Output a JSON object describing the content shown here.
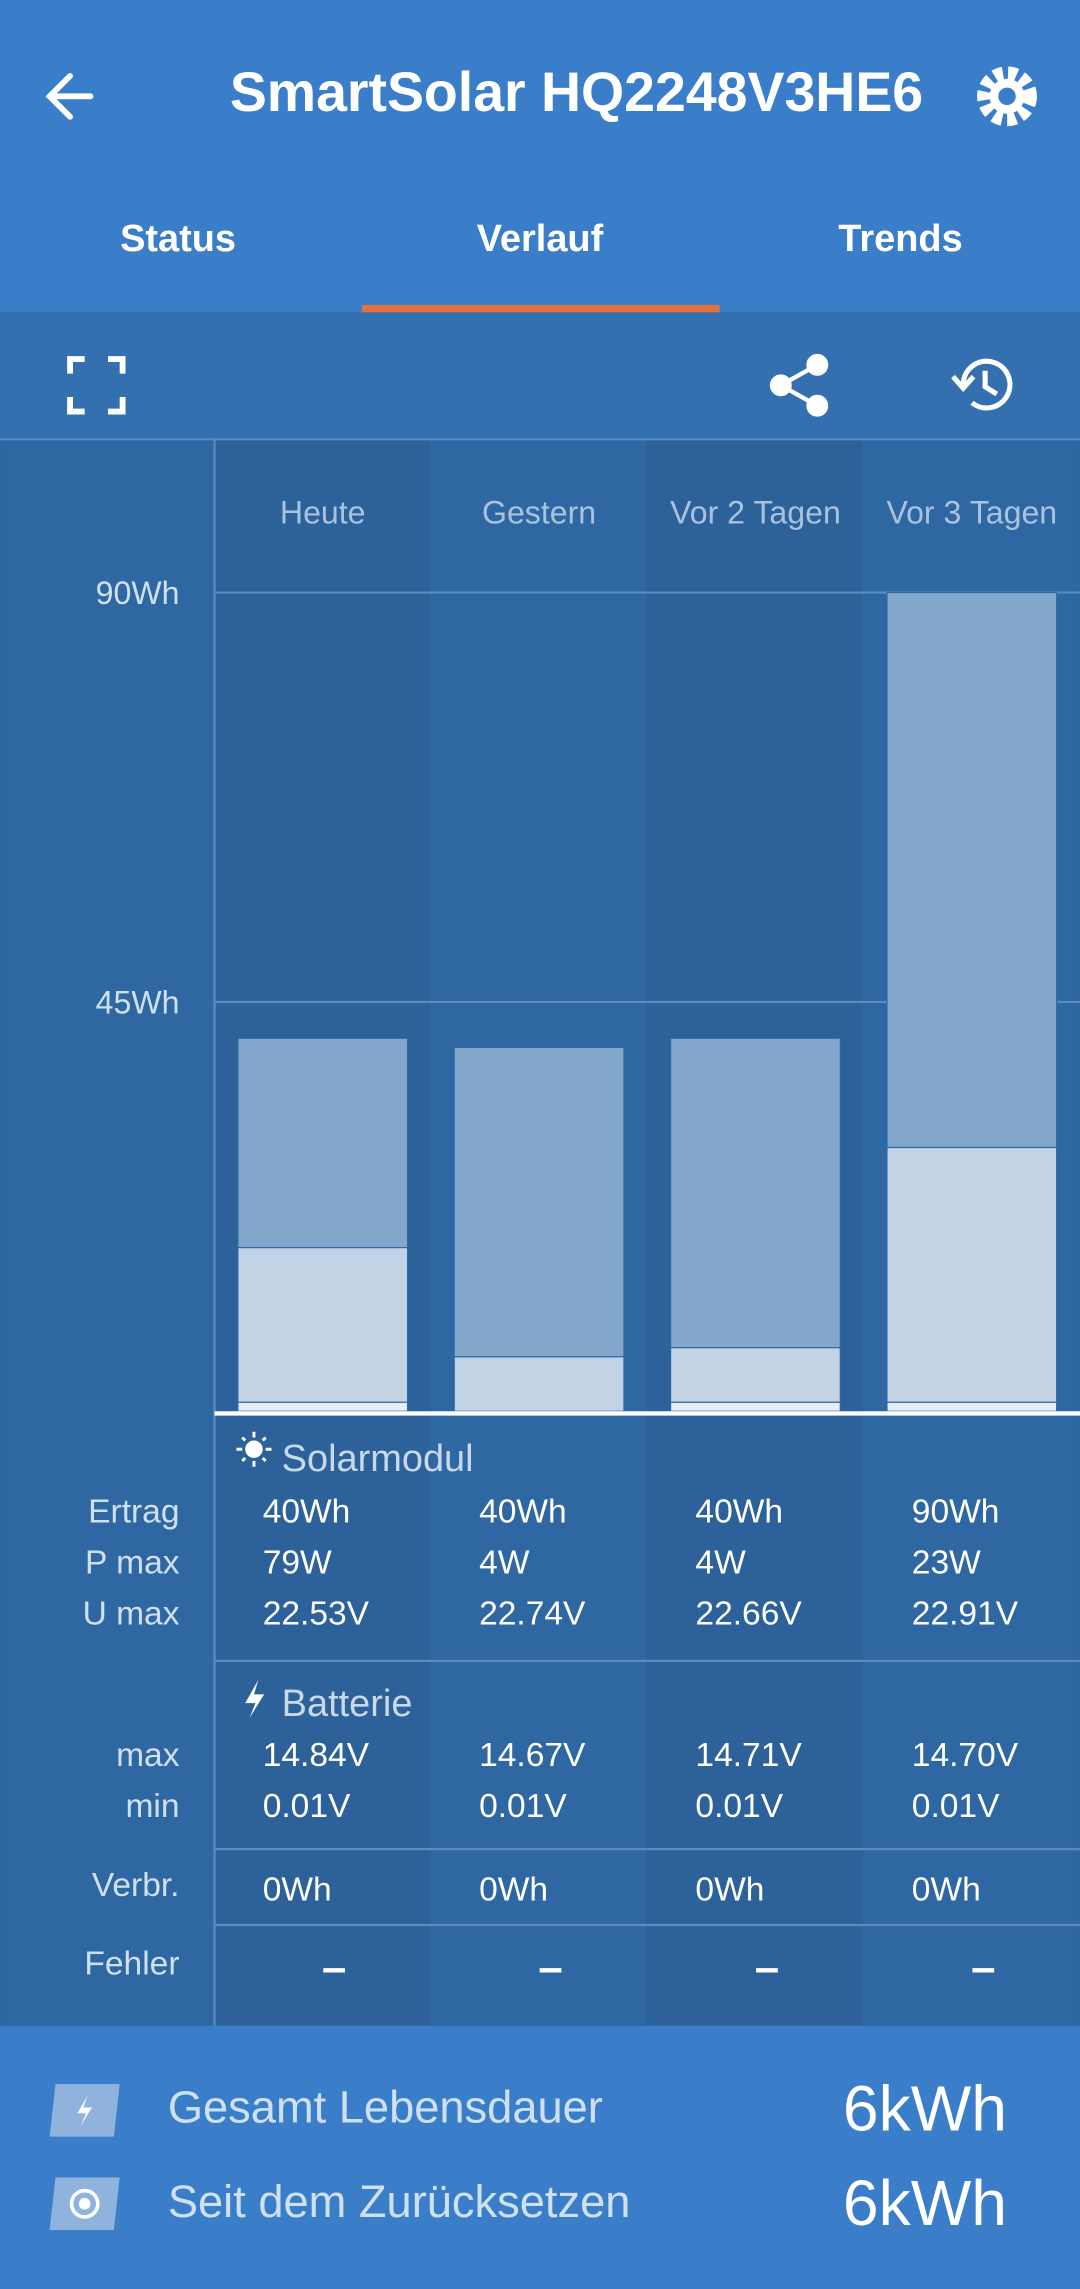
{
  "header": {
    "title": "SmartSolar HQ2248V3HE6",
    "tabs": [
      "Status",
      "Verlauf",
      "Trends"
    ]
  },
  "chart_data": {
    "type": "bar",
    "stacked": true,
    "categories": [
      "Heute",
      "Gestern",
      "Vor 2 Tagen",
      "Vor 3 Tagen"
    ],
    "series": [
      {
        "color": "#e6edf5",
        "values": [
          1,
          0,
          1,
          1
        ]
      },
      {
        "color": "#c3d3e6",
        "values": [
          17,
          6,
          6,
          28
        ]
      },
      {
        "color": "#83a6cb",
        "values": [
          23,
          34,
          34,
          61
        ]
      }
    ],
    "ylim": [
      0,
      90
    ],
    "yticks": [
      {
        "value": 45,
        "label": "45Wh"
      },
      {
        "value": 90,
        "label": "90Wh"
      }
    ],
    "grid": true
  },
  "table": {
    "sections": [
      {
        "title": "Solarmodul",
        "rows": [
          {
            "label": "Ertrag",
            "values": [
              "40Wh",
              "40Wh",
              "40Wh",
              "90Wh"
            ]
          },
          {
            "label": "P max",
            "values": [
              "79W",
              "4W",
              "4W",
              "23W"
            ]
          },
          {
            "label": "U max",
            "values": [
              "22.53V",
              "22.74V",
              "22.66V",
              "22.91V"
            ]
          }
        ]
      },
      {
        "title": "Batterie",
        "rows": [
          {
            "label": "max",
            "values": [
              "14.84V",
              "14.67V",
              "14.71V",
              "14.70V"
            ]
          },
          {
            "label": "min",
            "values": [
              "0.01V",
              "0.01V",
              "0.01V",
              "0.01V"
            ]
          }
        ]
      },
      {
        "rows": [
          {
            "label": "Verbr.",
            "values": [
              "0Wh",
              "0Wh",
              "0Wh",
              "0Wh"
            ]
          }
        ]
      },
      {
        "rows": [
          {
            "label": "Fehler",
            "values": [
              "–",
              "–",
              "–",
              "–"
            ]
          }
        ]
      }
    ]
  },
  "footer": {
    "rows": [
      {
        "label": "Gesamt Lebensdauer",
        "value": "6kWh"
      },
      {
        "label": "Seit dem Zurücksetzen",
        "value": "6kWh"
      }
    ]
  }
}
